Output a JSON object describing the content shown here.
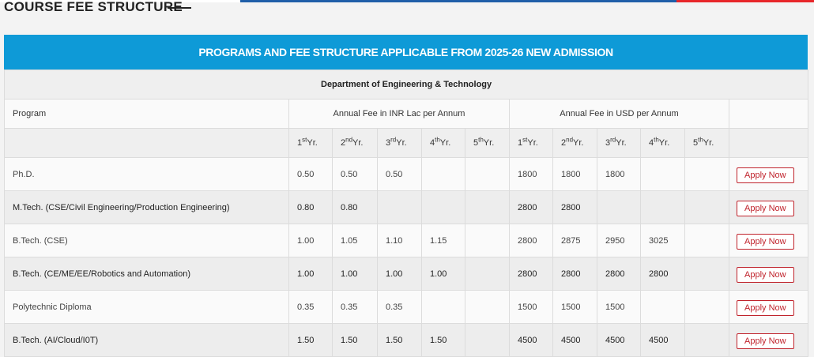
{
  "section": {
    "title": "COURSE FEE STRUCTURE"
  },
  "colors": {
    "banner": "#0e9ad7",
    "apply_button": "#c0232c"
  },
  "banner": {
    "text": "PROGRAMS AND FEE STRUCTURE APPLICABLE FROM 2025-26 NEW ADMISSION"
  },
  "table": {
    "department": "Department of Engineering & Technology",
    "program_header": "Program",
    "inr_header": "Annual Fee in INR Lac per Annum",
    "usd_header": "Annual Fee in USD per Annum",
    "year_labels": [
      {
        "num": "1",
        "sup": "st",
        "suffix": "Yr."
      },
      {
        "num": "2",
        "sup": "nd",
        "suffix": "Yr."
      },
      {
        "num": "3",
        "sup": "rd",
        "suffix": "Yr."
      },
      {
        "num": "4",
        "sup": "th",
        "suffix": "Yr."
      },
      {
        "num": "5",
        "sup": "th",
        "suffix": "Yr."
      }
    ],
    "rows": [
      {
        "program": "Ph.D.",
        "inr": [
          "0.50",
          "0.50",
          "0.50",
          "",
          ""
        ],
        "usd": [
          "1800",
          "1800",
          "1800",
          "",
          ""
        ],
        "action": "Apply Now"
      },
      {
        "program": "M.Tech. (CSE/Civil Engineering/Production Engineering)",
        "inr": [
          "0.80",
          "0.80",
          "",
          "",
          ""
        ],
        "usd": [
          "2800",
          "2800",
          "",
          "",
          ""
        ],
        "action": "Apply Now"
      },
      {
        "program": "B.Tech. (CSE)",
        "inr": [
          "1.00",
          "1.05",
          "1.10",
          "1.15",
          ""
        ],
        "usd": [
          "2800",
          "2875",
          "2950",
          "3025",
          ""
        ],
        "action": "Apply Now"
      },
      {
        "program": "B.Tech. (CE/ME/EE/Robotics and Automation)",
        "inr": [
          "1.00",
          "1.00",
          "1.00",
          "1.00",
          ""
        ],
        "usd": [
          "2800",
          "2800",
          "2800",
          "2800",
          ""
        ],
        "action": "Apply Now"
      },
      {
        "program": "Polytechnic Diploma",
        "inr": [
          "0.35",
          "0.35",
          "0.35",
          "",
          ""
        ],
        "usd": [
          "1500",
          "1500",
          "1500",
          "",
          ""
        ],
        "action": "Apply Now"
      },
      {
        "program": "B.Tech. (AI/Cloud/I0T)",
        "inr": [
          "1.50",
          "1.50",
          "1.50",
          "1.50",
          ""
        ],
        "usd": [
          "4500",
          "4500",
          "4500",
          "4500",
          ""
        ],
        "action": "Apply Now"
      }
    ]
  }
}
